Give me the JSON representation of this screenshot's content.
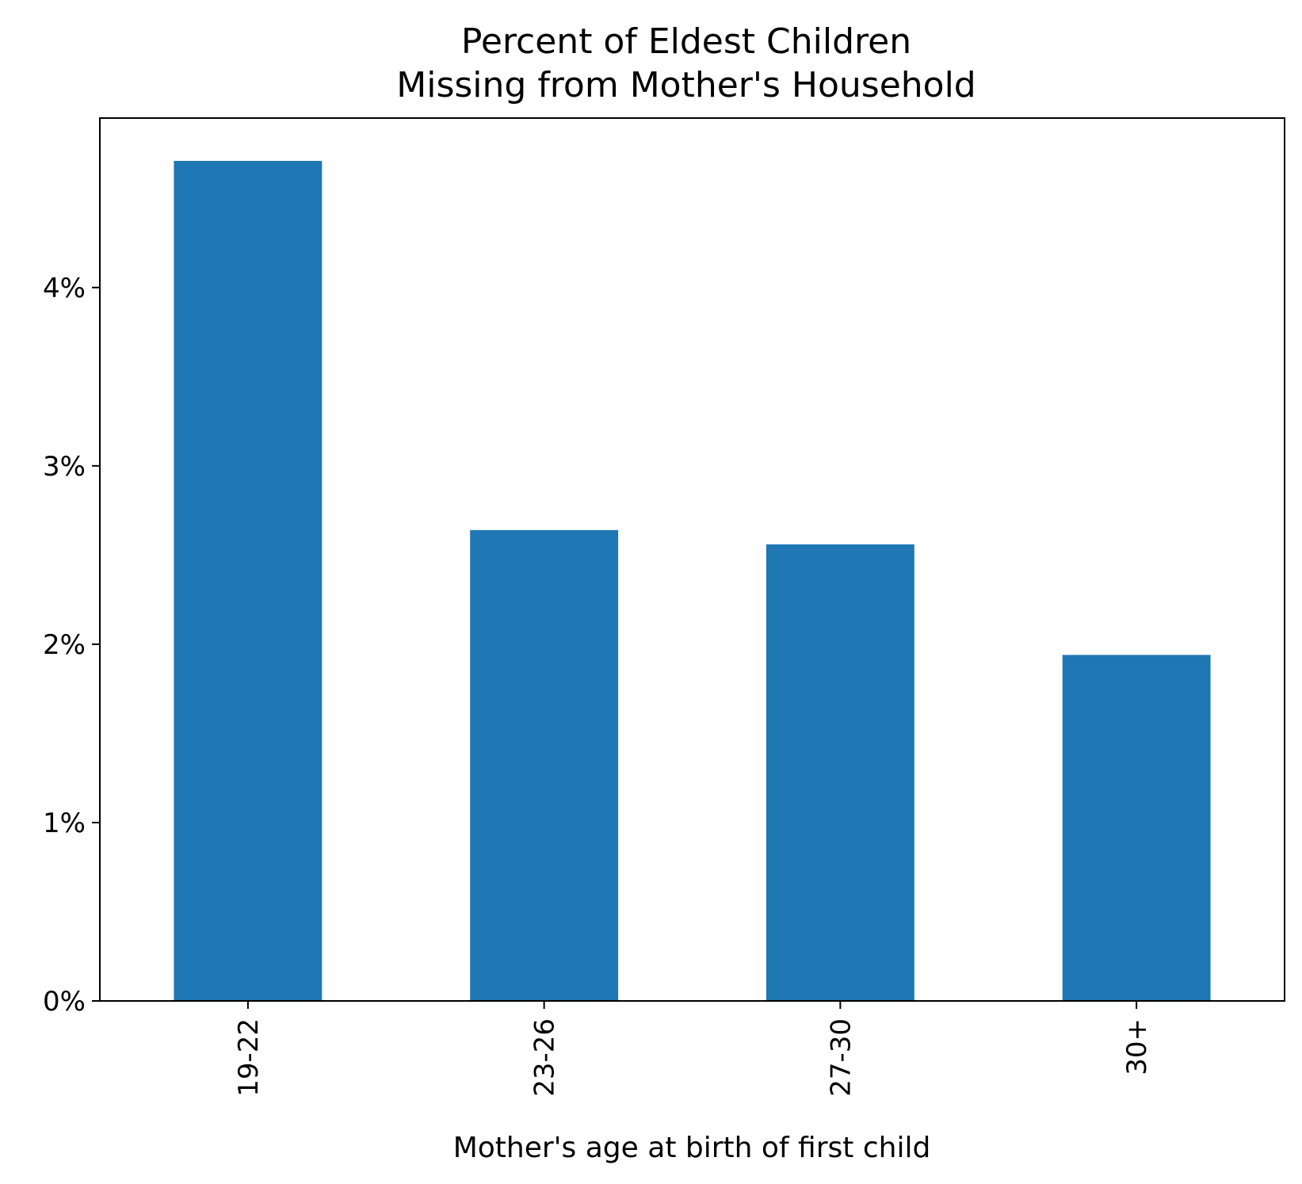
{
  "chart_data": {
    "type": "bar",
    "title": "Percent of Eldest Children\nMissing from Mother's Household",
    "title_lines": [
      "Percent of Eldest Children",
      "Missing from Mother's Household"
    ],
    "xlabel": "Mother's age at birth of first child",
    "ylabel": "",
    "categories": [
      "19-22",
      "23-26",
      "27-30",
      "30+"
    ],
    "values": [
      4.71,
      2.64,
      2.56,
      1.94
    ],
    "value_unit": "%",
    "ylim": [
      0,
      4.95
    ],
    "yticks": [
      0,
      1,
      2,
      3,
      4
    ],
    "ytick_labels": [
      "0%",
      "1%",
      "2%",
      "3%",
      "4%"
    ],
    "grid": false,
    "legend": "none",
    "bar_color": "#1f77b4"
  }
}
